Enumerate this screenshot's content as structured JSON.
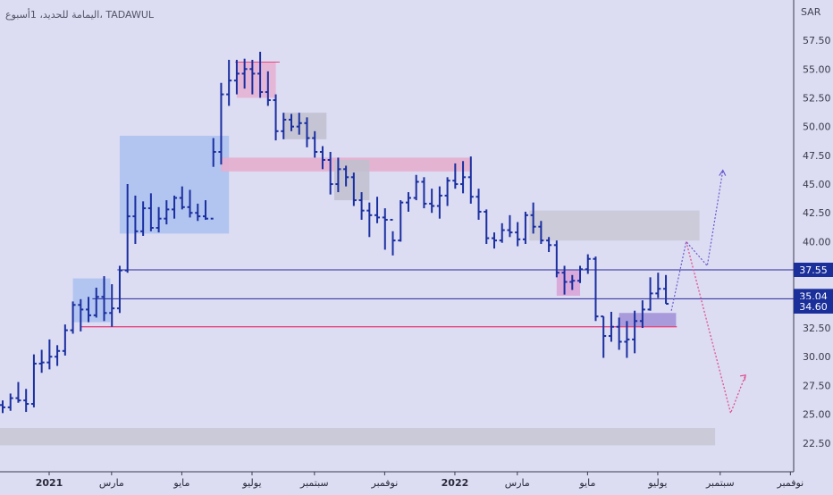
{
  "header": {
    "title": "اليمامة للحديد، 1أسبوع، TADAWUL"
  },
  "chart_data": {
    "type": "ohlc",
    "currency_label": "SAR",
    "y_ticks": [
      22.5,
      25,
      27.5,
      30,
      32.5,
      35,
      37.5,
      40,
      42.5,
      45,
      47.5,
      50,
      52.5,
      55,
      57.5
    ],
    "ylim": [
      20.0,
      61.0
    ],
    "x_ticks": [
      {
        "label": "2021",
        "idx": 0,
        "bold": true
      },
      {
        "label": "مارس",
        "idx": 8
      },
      {
        "label": "مايو",
        "idx": 17
      },
      {
        "label": "يوليو",
        "idx": 26
      },
      {
        "label": "سبتمبر",
        "idx": 34
      },
      {
        "label": "نوفمبر",
        "idx": 43
      },
      {
        "label": "2022",
        "idx": 52,
        "bold": true
      },
      {
        "label": "مارس",
        "idx": 60
      },
      {
        "label": "مايو",
        "idx": 69
      },
      {
        "label": "يوليو",
        "idx": 78
      },
      {
        "label": "سبتمبر",
        "idx": 86
      },
      {
        "label": "نوفمبر",
        "idx": 95
      }
    ],
    "price_labels": [
      {
        "value": "37.55",
        "y": 37.55
      },
      {
        "value": "35.04",
        "y": 35.04
      },
      {
        "value": "34.60",
        "y": 34.6
      }
    ],
    "bars": [
      [
        25.8,
        26.2,
        25.1,
        25.6
      ],
      [
        25.6,
        26.8,
        25.3,
        26.4
      ],
      [
        26.4,
        27.8,
        26.0,
        26.2
      ],
      [
        26.2,
        27.2,
        25.2,
        25.9
      ],
      [
        25.9,
        30.2,
        25.6,
        29.4
      ],
      [
        29.4,
        30.6,
        28.6,
        29.5
      ],
      [
        29.5,
        31.5,
        28.9,
        30.0
      ],
      [
        30.0,
        31.0,
        29.2,
        30.5
      ],
      [
        30.5,
        32.8,
        30.1,
        32.3
      ],
      [
        32.3,
        34.8,
        32.0,
        34.5
      ],
      [
        34.5,
        35.0,
        32.2,
        34.1
      ],
      [
        34.1,
        35.2,
        33.0,
        33.6
      ],
      [
        33.6,
        36.0,
        33.4,
        35.2
      ],
      [
        35.2,
        37.0,
        33.1,
        33.8
      ],
      [
        33.8,
        36.3,
        32.6,
        34.2
      ],
      [
        34.2,
        37.9,
        33.8,
        37.5
      ],
      [
        37.5,
        45.0,
        37.3,
        42.2
      ],
      [
        42.2,
        44.0,
        39.8,
        40.9
      ],
      [
        40.9,
        43.5,
        40.5,
        42.9
      ],
      [
        42.9,
        44.2,
        40.9,
        41.2
      ],
      [
        41.2,
        43.0,
        40.8,
        42.0
      ],
      [
        42.0,
        43.6,
        41.5,
        42.8
      ],
      [
        42.8,
        44.0,
        42.0,
        43.8
      ],
      [
        43.8,
        44.8,
        42.8,
        43.0
      ],
      [
        43.0,
        44.5,
        42.1,
        42.5
      ],
      [
        42.5,
        43.3,
        41.8,
        42.2
      ],
      [
        42.2,
        43.6,
        41.9,
        42.0
      ],
      [
        42.0,
        49.0,
        46.5,
        47.8
      ],
      [
        47.8,
        53.8,
        46.7,
        52.8
      ],
      [
        52.8,
        55.8,
        51.8,
        54.0
      ],
      [
        54.0,
        55.8,
        52.8,
        54.6
      ],
      [
        54.6,
        55.9,
        53.3,
        55.0
      ],
      [
        55.0,
        55.8,
        52.8,
        54.6
      ],
      [
        54.6,
        56.5,
        52.5,
        53.0
      ],
      [
        53.0,
        54.8,
        51.8,
        52.3
      ],
      [
        52.3,
        52.8,
        48.8,
        49.6
      ],
      [
        49.6,
        51.2,
        48.9,
        50.6
      ],
      [
        50.6,
        51.1,
        49.6,
        50.0
      ],
      [
        50.0,
        51.2,
        49.3,
        50.3
      ],
      [
        50.3,
        50.8,
        48.2,
        49.0
      ],
      [
        49.0,
        49.6,
        47.3,
        47.8
      ],
      [
        47.8,
        48.3,
        46.3,
        47.1
      ],
      [
        47.1,
        47.8,
        44.1,
        45.0
      ],
      [
        45.0,
        47.3,
        44.3,
        46.3
      ],
      [
        46.3,
        46.6,
        44.8,
        45.6
      ],
      [
        45.6,
        46.0,
        43.1,
        43.6
      ],
      [
        43.6,
        44.3,
        41.9,
        42.7
      ],
      [
        42.7,
        43.4,
        40.4,
        42.3
      ],
      [
        42.3,
        43.9,
        41.6,
        42.1
      ],
      [
        42.1,
        42.9,
        39.3,
        41.9
      ],
      [
        41.9,
        40.9,
        38.8,
        40.1
      ],
      [
        40.1,
        43.6,
        40.0,
        43.4
      ],
      [
        43.4,
        44.3,
        42.6,
        43.8
      ],
      [
        43.8,
        45.8,
        43.6,
        45.2
      ],
      [
        45.2,
        45.6,
        42.9,
        43.3
      ],
      [
        43.3,
        44.6,
        42.5,
        43.1
      ],
      [
        43.1,
        44.8,
        42.0,
        44.0
      ],
      [
        44.0,
        45.6,
        43.1,
        45.3
      ],
      [
        45.3,
        46.8,
        44.6,
        45.0
      ],
      [
        45.0,
        47.0,
        44.2,
        45.6
      ],
      [
        45.6,
        47.4,
        43.3,
        43.9
      ],
      [
        43.9,
        44.6,
        41.9,
        42.6
      ],
      [
        42.6,
        42.8,
        39.8,
        40.3
      ],
      [
        40.3,
        40.8,
        39.4,
        40.1
      ],
      [
        40.1,
        41.6,
        39.9,
        41.0
      ],
      [
        41.0,
        42.3,
        40.4,
        40.8
      ],
      [
        40.8,
        41.7,
        39.6,
        40.2
      ],
      [
        40.2,
        42.6,
        39.8,
        42.3
      ],
      [
        42.3,
        43.4,
        40.7,
        41.3
      ],
      [
        41.3,
        41.8,
        39.8,
        40.1
      ],
      [
        40.1,
        40.4,
        39.1,
        39.7
      ],
      [
        39.7,
        40.1,
        36.9,
        37.3
      ],
      [
        37.3,
        37.9,
        35.4,
        36.5
      ],
      [
        36.5,
        37.1,
        35.8,
        36.6
      ],
      [
        36.6,
        37.9,
        36.4,
        37.6
      ],
      [
        37.6,
        38.9,
        37.2,
        38.5
      ],
      [
        38.5,
        38.7,
        33.1,
        33.5
      ],
      [
        33.5,
        33.5,
        29.9,
        31.8
      ],
      [
        31.8,
        33.9,
        31.3,
        32.6
      ],
      [
        32.6,
        33.4,
        30.6,
        31.3
      ],
      [
        31.3,
        33.1,
        29.9,
        31.5
      ],
      [
        31.5,
        34.0,
        30.3,
        33.1
      ],
      [
        33.1,
        34.9,
        32.5,
        34.1
      ],
      [
        34.1,
        36.9,
        34.0,
        35.5
      ],
      [
        35.5,
        37.3,
        35.1,
        35.9
      ],
      [
        35.9,
        37.1,
        34.6,
        34.6
      ]
    ]
  }
}
